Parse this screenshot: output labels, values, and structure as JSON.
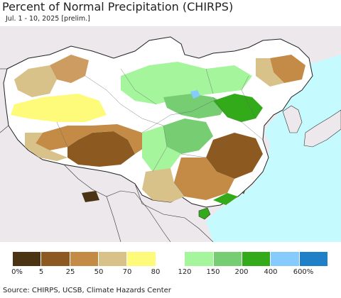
{
  "title": "Percent of Normal Precipitation (CHIRPS)",
  "subtitle": "Jul. 1 - 10, 2025 [prelim.]",
  "legend": {
    "colors": [
      "#4a3414",
      "#8c5a20",
      "#c38b45",
      "#d9c28a",
      "#fffb7a",
      "#ffffff",
      "#a4f59c",
      "#76cd72",
      "#32aa1a",
      "#86cbfd",
      "#1f7fc7"
    ],
    "labels": [
      "0%",
      "5",
      "25",
      "50",
      "70",
      "80",
      "120",
      "150",
      "200",
      "400",
      "600%"
    ]
  },
  "source": "Source: CHIRPS, UCSB, Climate Hazards Center",
  "map": {
    "ocean_color": "#c5fbff",
    "outside_color": "#ece8ec"
  }
}
